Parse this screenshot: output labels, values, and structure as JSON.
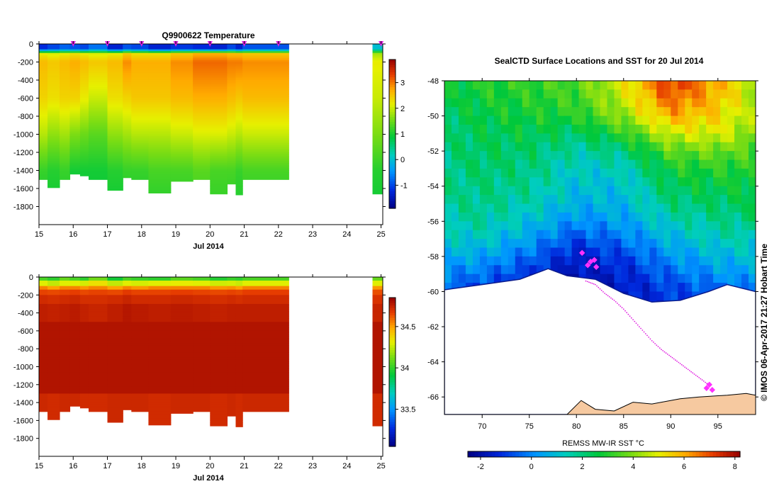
{
  "chart_data": [
    {
      "type": "heatmap",
      "title": "Q9900622  Temperature",
      "xlabel": "Jul 2014",
      "x_ticks": [
        "15",
        "16",
        "17",
        "18",
        "19",
        "20",
        "21",
        "22",
        "23",
        "24",
        "25"
      ],
      "xlim": [
        15,
        25.05
      ],
      "y_ticks": [
        "0",
        "-200",
        "-400",
        "-600",
        "-800",
        "-1000",
        "-1200",
        "-1400",
        "-1600",
        "-1800"
      ],
      "ylim": [
        -2000,
        0
      ],
      "colorbar": {
        "ticks": [
          "-1",
          "0",
          "1",
          "2",
          "3"
        ],
        "range": [
          -1.9,
          3.9
        ]
      },
      "surface_markers_day": [
        16,
        17,
        18,
        19,
        20,
        21,
        22,
        25
      ],
      "profiles": [
        {
          "start": 15.0,
          "end": 15.25,
          "depth": 1500,
          "surface": -1.2,
          "t200": 2.6,
          "t600": 2.4,
          "t1000": 1.9,
          "t1400": 1.2,
          "bottom": 0.9
        },
        {
          "start": 15.25,
          "end": 15.6,
          "depth": 1590,
          "surface": -1.0,
          "t200": 2.5,
          "t600": 2.3,
          "t1000": 1.7,
          "t1400": 1.1,
          "bottom": 0.9
        },
        {
          "start": 15.6,
          "end": 15.9,
          "depth": 1500,
          "surface": -0.8,
          "t200": 2.6,
          "t600": 2.4,
          "t1000": 1.8,
          "t1400": 1.2,
          "bottom": 1.0
        },
        {
          "start": 15.9,
          "end": 16.2,
          "depth": 1440,
          "surface": -0.9,
          "t200": 2.7,
          "t600": 2.4,
          "t1000": 1.6,
          "t1400": 1.0,
          "bottom": 0.9
        },
        {
          "start": 16.2,
          "end": 16.45,
          "depth": 1460,
          "surface": -1.0,
          "t200": 2.6,
          "t600": 2.2,
          "t1000": 1.5,
          "t1400": 1.0,
          "bottom": 0.9
        },
        {
          "start": 16.45,
          "end": 17.0,
          "depth": 1500,
          "surface": -0.7,
          "t200": 2.5,
          "t600": 2.0,
          "t1000": 1.4,
          "t1400": 1.0,
          "bottom": 0.9
        },
        {
          "start": 17.0,
          "end": 17.45,
          "depth": 1620,
          "surface": -1.3,
          "t200": 2.6,
          "t600": 2.3,
          "t1000": 1.7,
          "t1400": 1.1,
          "bottom": 0.9
        },
        {
          "start": 17.45,
          "end": 17.7,
          "depth": 1480,
          "surface": -0.9,
          "t200": 2.9,
          "t600": 2.4,
          "t1000": 1.8,
          "t1400": 1.2,
          "bottom": 1.0
        },
        {
          "start": 17.7,
          "end": 18.2,
          "depth": 1500,
          "surface": -1.0,
          "t200": 2.7,
          "t600": 2.5,
          "t1000": 1.9,
          "t1400": 1.2,
          "bottom": 1.0
        },
        {
          "start": 18.2,
          "end": 18.85,
          "depth": 1650,
          "surface": -1.3,
          "t200": 2.7,
          "t600": 2.5,
          "t1000": 1.9,
          "t1400": 1.3,
          "bottom": 1.0
        },
        {
          "start": 18.85,
          "end": 19.5,
          "depth": 1520,
          "surface": -1.1,
          "t200": 2.9,
          "t600": 2.6,
          "t1000": 2.0,
          "t1400": 1.3,
          "bottom": 1.0
        },
        {
          "start": 19.5,
          "end": 20.0,
          "depth": 1500,
          "surface": -1.2,
          "t200": 3.1,
          "t600": 2.7,
          "t1000": 2.1,
          "t1400": 1.4,
          "bottom": 1.1
        },
        {
          "start": 20.0,
          "end": 20.5,
          "depth": 1660,
          "surface": -1.3,
          "t200": 3.1,
          "t600": 2.7,
          "t1000": 2.1,
          "t1400": 1.3,
          "bottom": 1.1
        },
        {
          "start": 20.5,
          "end": 20.75,
          "depth": 1550,
          "surface": -1.0,
          "t200": 3.0,
          "t600": 2.6,
          "t1000": 2.0,
          "t1400": 1.3,
          "bottom": 1.0
        },
        {
          "start": 20.75,
          "end": 20.95,
          "depth": 1670,
          "surface": -1.3,
          "t200": 3.0,
          "t600": 2.5,
          "t1000": 1.9,
          "t1400": 1.2,
          "bottom": 1.0
        },
        {
          "start": 20.95,
          "end": 22.3,
          "depth": 1500,
          "surface": -0.9,
          "t200": 2.9,
          "t600": 2.6,
          "t1000": 2.0,
          "t1400": 1.3,
          "bottom": 1.0
        },
        {
          "start": 24.75,
          "end": 25.05,
          "depth": 1660,
          "surface": 0.0,
          "t200": 2.2,
          "t600": 2.0,
          "t1000": 1.6,
          "t1400": 1.1,
          "bottom": 0.9
        }
      ]
    },
    {
      "type": "heatmap",
      "title": "",
      "xlabel": "Jul 2014",
      "x_ticks": [
        "15",
        "16",
        "17",
        "18",
        "19",
        "20",
        "21",
        "22",
        "23",
        "24",
        "25"
      ],
      "xlim": [
        15,
        25.05
      ],
      "y_ticks": [
        "0",
        "-200",
        "-400",
        "-600",
        "-800",
        "-1000",
        "-1200",
        "-1400",
        "-1600",
        "-1800"
      ],
      "ylim": [
        -2000,
        0
      ],
      "colorbar": {
        "ticks": [
          "33.5",
          "34",
          "34.5"
        ],
        "range": [
          33.05,
          34.85
        ]
      },
      "layers_depth": [
        0,
        50,
        100,
        150,
        200,
        300,
        500,
        1300,
        2000
      ],
      "profiles": [
        {
          "start": 15.0,
          "end": 15.25,
          "depth": 1500,
          "vals": [
            34.05,
            34.3,
            34.55,
            34.66,
            34.72,
            34.76,
            34.79,
            34.73
          ]
        },
        {
          "start": 15.25,
          "end": 15.6,
          "depth": 1590,
          "vals": [
            34.0,
            34.25,
            34.5,
            34.65,
            34.71,
            34.75,
            34.79,
            34.72
          ]
        },
        {
          "start": 15.6,
          "end": 15.9,
          "depth": 1500,
          "vals": [
            34.1,
            34.3,
            34.55,
            34.66,
            34.72,
            34.76,
            34.79,
            34.73
          ]
        },
        {
          "start": 15.9,
          "end": 16.2,
          "depth": 1440,
          "vals": [
            34.05,
            34.3,
            34.55,
            34.67,
            34.73,
            34.77,
            34.79,
            34.73
          ]
        },
        {
          "start": 16.2,
          "end": 16.45,
          "depth": 1460,
          "vals": [
            34.0,
            34.28,
            34.52,
            34.65,
            34.71,
            34.75,
            34.79,
            34.72
          ]
        },
        {
          "start": 16.45,
          "end": 17.0,
          "depth": 1500,
          "vals": [
            34.12,
            34.35,
            34.55,
            34.66,
            34.71,
            34.74,
            34.79,
            34.72
          ]
        },
        {
          "start": 17.0,
          "end": 17.45,
          "depth": 1620,
          "vals": [
            33.95,
            34.25,
            34.5,
            34.65,
            34.72,
            34.76,
            34.79,
            34.73
          ]
        },
        {
          "start": 17.45,
          "end": 17.7,
          "depth": 1480,
          "vals": [
            34.05,
            34.3,
            34.55,
            34.68,
            34.74,
            34.78,
            34.79,
            34.73
          ]
        },
        {
          "start": 17.7,
          "end": 18.2,
          "depth": 1500,
          "vals": [
            34.02,
            34.28,
            34.52,
            34.66,
            34.72,
            34.77,
            34.79,
            34.73
          ]
        },
        {
          "start": 18.2,
          "end": 18.85,
          "depth": 1650,
          "vals": [
            34.0,
            34.3,
            34.55,
            34.66,
            34.72,
            34.76,
            34.79,
            34.72
          ]
        },
        {
          "start": 18.85,
          "end": 19.5,
          "depth": 1520,
          "vals": [
            34.08,
            34.32,
            34.55,
            34.67,
            34.73,
            34.77,
            34.79,
            34.73
          ]
        },
        {
          "start": 19.5,
          "end": 20.0,
          "depth": 1500,
          "vals": [
            34.05,
            34.3,
            34.55,
            34.66,
            34.72,
            34.76,
            34.79,
            34.73
          ]
        },
        {
          "start": 20.0,
          "end": 20.5,
          "depth": 1660,
          "vals": [
            33.98,
            34.27,
            34.52,
            34.65,
            34.71,
            34.75,
            34.79,
            34.72
          ]
        },
        {
          "start": 20.5,
          "end": 20.75,
          "depth": 1550,
          "vals": [
            34.02,
            34.28,
            34.53,
            34.66,
            34.72,
            34.76,
            34.79,
            34.73
          ]
        },
        {
          "start": 20.75,
          "end": 20.95,
          "depth": 1670,
          "vals": [
            34.0,
            34.26,
            34.5,
            34.65,
            34.71,
            34.76,
            34.79,
            34.72
          ]
        },
        {
          "start": 20.95,
          "end": 22.3,
          "depth": 1500,
          "vals": [
            34.05,
            34.3,
            34.55,
            34.67,
            34.72,
            34.76,
            34.79,
            34.73
          ]
        },
        {
          "start": 24.75,
          "end": 25.05,
          "depth": 1660,
          "vals": [
            34.1,
            34.3,
            34.52,
            34.64,
            34.7,
            34.74,
            34.79,
            34.72
          ]
        }
      ]
    },
    {
      "type": "heatmap",
      "title": "SealCTD Surface Locations and SST for 20 Jul 2014",
      "x_ticks": [
        "70",
        "75",
        "80",
        "85",
        "90",
        "95"
      ],
      "xlim": [
        66,
        99
      ],
      "y_ticks": [
        "-48",
        "-50",
        "-52",
        "-54",
        "-56",
        "-58",
        "-60",
        "-62",
        "-64",
        "-66"
      ],
      "ylim": [
        -67,
        -48
      ],
      "colorbar_label": "REMSS MW-IR SST °C",
      "colorbar": {
        "ticks": [
          "-2",
          "0",
          "2",
          "4",
          "6",
          "8"
        ],
        "range": [
          -2.5,
          8.2
        ]
      },
      "sst_grid": {
        "lats": [
          -48,
          -49,
          -50,
          -51,
          -52,
          -53,
          -54,
          -55,
          -56,
          -57,
          -58,
          -59,
          -60
        ],
        "lons": [
          66,
          70,
          75,
          80,
          85,
          90,
          95,
          99
        ],
        "values": [
          [
            2.6,
            3.0,
            3.2,
            3.5,
            5.0,
            7.4,
            6.0,
            4.5
          ],
          [
            2.4,
            2.8,
            3.0,
            3.3,
            4.7,
            6.8,
            5.8,
            4.3
          ],
          [
            2.2,
            2.6,
            2.8,
            3.0,
            4.2,
            6.0,
            5.4,
            4.2
          ],
          [
            2.1,
            2.4,
            2.5,
            2.2,
            3.1,
            4.8,
            4.9,
            4.0
          ],
          [
            2.0,
            2.3,
            2.2,
            1.6,
            2.0,
            3.6,
            3.8,
            3.4
          ],
          [
            1.9,
            2.2,
            2.0,
            1.2,
            1.4,
            2.8,
            3.0,
            3.0
          ],
          [
            1.8,
            2.0,
            1.8,
            1.0,
            1.0,
            2.4,
            2.6,
            2.7
          ],
          [
            1.7,
            1.9,
            1.5,
            0.7,
            0.8,
            2.0,
            2.2,
            2.4
          ],
          [
            1.5,
            1.7,
            1.0,
            0.1,
            0.4,
            1.4,
            1.8,
            2.0
          ],
          [
            1.2,
            1.2,
            0.4,
            -0.8,
            -0.2,
            0.8,
            1.4,
            1.5
          ],
          [
            0.6,
            0.5,
            -0.4,
            -1.6,
            -0.9,
            0.2,
            0.8,
            1.0
          ],
          [
            0.0,
            -0.3,
            -1.1,
            -1.8,
            -1.4,
            -0.4,
            0.2,
            0.4
          ],
          [
            -0.6,
            -1.0,
            -1.6,
            -1.9,
            -1.6,
            -1.0,
            -0.5,
            -0.2
          ]
        ]
      },
      "ice_edge": [
        [
          66,
          -59.9
        ],
        [
          70,
          -59.6
        ],
        [
          74,
          -59.3
        ],
        [
          77,
          -58.7
        ],
        [
          79,
          -59.1
        ],
        [
          82,
          -59.3
        ],
        [
          85,
          -60.1
        ],
        [
          88,
          -60.6
        ],
        [
          91,
          -60.5
        ],
        [
          94,
          -60.0
        ],
        [
          96,
          -59.6
        ],
        [
          99,
          -60.0
        ]
      ],
      "coast": [
        [
          79,
          -67
        ],
        [
          80.5,
          -66.2
        ],
        [
          82,
          -66.7
        ],
        [
          84,
          -66.8
        ],
        [
          86,
          -66.3
        ],
        [
          88,
          -66.4
        ],
        [
          91,
          -66.1
        ],
        [
          93,
          -66.0
        ],
        [
          96,
          -65.9
        ],
        [
          98,
          -65.8
        ],
        [
          99,
          -65.9
        ],
        [
          99,
          -67
        ]
      ],
      "seal_locations": [
        [
          80.6,
          -57.8
        ],
        [
          81.5,
          -58.3
        ],
        [
          81.9,
          -58.2
        ],
        [
          82.1,
          -58.6
        ],
        [
          81.2,
          -58.5
        ],
        [
          93.8,
          -65.5
        ],
        [
          94.1,
          -65.3
        ],
        [
          94.4,
          -65.6
        ]
      ],
      "seal_track": [
        [
          81,
          -59.4
        ],
        [
          82,
          -59.6
        ],
        [
          83,
          -60.1
        ],
        [
          84,
          -60.5
        ],
        [
          85,
          -61.0
        ],
        [
          86,
          -61.6
        ],
        [
          87,
          -62.2
        ],
        [
          88,
          -62.8
        ],
        [
          89,
          -63.3
        ],
        [
          90,
          -63.7
        ],
        [
          91,
          -64.1
        ],
        [
          92,
          -64.5
        ],
        [
          93,
          -64.9
        ],
        [
          94,
          -65.3
        ]
      ]
    }
  ],
  "credit": "©  IMOS 06-Apr-2017 21:27 Hobart Time"
}
